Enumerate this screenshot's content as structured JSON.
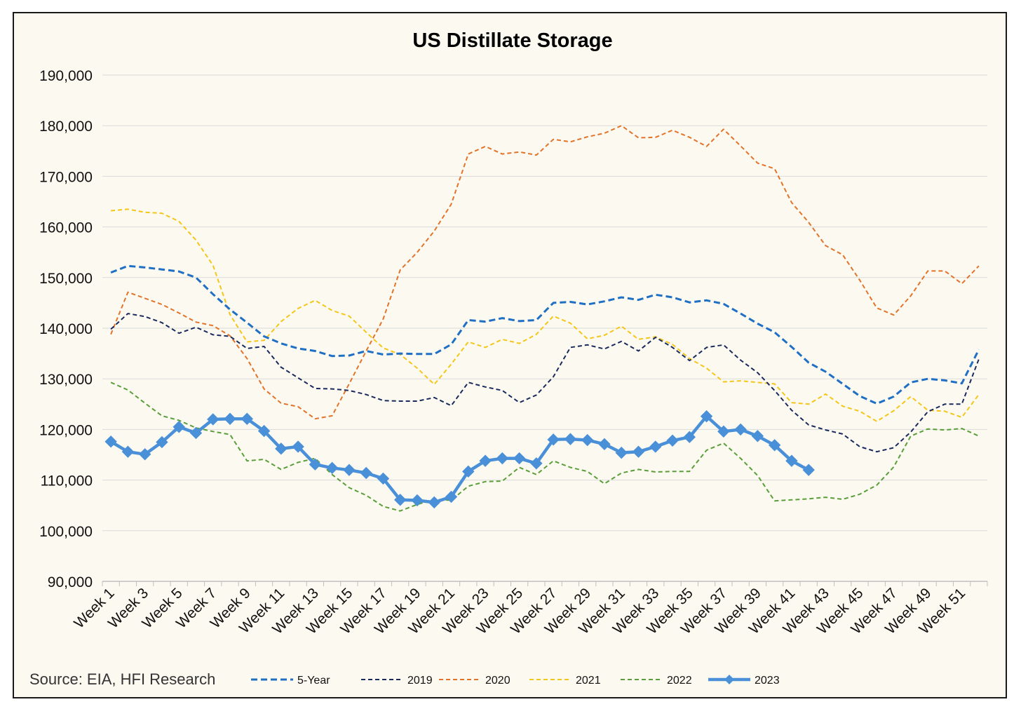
{
  "chart_data": {
    "type": "line",
    "title": "US Distillate Storage",
    "source": "Source: EIA, HFI Research",
    "xlabel": "",
    "ylabel": "",
    "ylim": [
      90000,
      190000
    ],
    "yticks": [
      90000,
      100000,
      110000,
      120000,
      130000,
      140000,
      150000,
      160000,
      170000,
      180000,
      190000
    ],
    "ytick_labels": [
      "90,000",
      "100,000",
      "110,000",
      "120,000",
      "130,000",
      "140,000",
      "150,000",
      "160,000",
      "170,000",
      "180,000",
      "190,000"
    ],
    "xtick_labels": [
      "Week 1",
      "Week 3",
      "Week 5",
      "Week 7",
      "Week 9",
      "Week 11",
      "Week 13",
      "Week 15",
      "Week 17",
      "Week 19",
      "Week 21",
      "Week 23",
      "Week 25",
      "Week 27",
      "Week 29",
      "Week 31",
      "Week 33",
      "Week 35",
      "Week 37",
      "Week 39",
      "Week 41",
      "Week 43",
      "Week 45",
      "Week 47",
      "Week 49",
      "Week 51"
    ],
    "grid": true,
    "legend_position": "bottom",
    "series": [
      {
        "name": "5-Year",
        "color": "#1f6fc5",
        "style": "dashed",
        "width": 3,
        "values": [
          151000,
          152300,
          152000,
          151600,
          151200,
          150000,
          146700,
          143700,
          141100,
          138400,
          137000,
          136000,
          135500,
          134500,
          134600,
          135500,
          134800,
          135000,
          134900,
          134900,
          136800,
          141600,
          141300,
          142000,
          141400,
          141600,
          145000,
          145200,
          144700,
          145300,
          146100,
          145600,
          146600,
          146100,
          145100,
          145500,
          144800,
          142900,
          140900,
          139200,
          136300,
          133200,
          131400,
          129000,
          126600,
          125100,
          126500,
          129300,
          130000,
          129700,
          129100,
          135800
        ]
      },
      {
        "name": "2019",
        "color": "#1a2a5e",
        "style": "dashed",
        "width": 2,
        "values": [
          139800,
          142900,
          142300,
          141100,
          139000,
          140200,
          138700,
          138400,
          136000,
          136400,
          132300,
          130200,
          128100,
          128000,
          127700,
          126900,
          125700,
          125600,
          125600,
          126300,
          124700,
          129300,
          128400,
          127700,
          125300,
          126800,
          130400,
          136200,
          136700,
          135900,
          137400,
          135500,
          138200,
          136200,
          133600,
          136200,
          136700,
          133700,
          131200,
          127700,
          123800,
          120900,
          119900,
          119100,
          116600,
          115600,
          116400,
          119500,
          123500,
          125000,
          125000,
          133900
        ]
      },
      {
        "name": "2020",
        "color": "#e2732a",
        "style": "dashed",
        "width": 2,
        "values": [
          138800,
          147100,
          145900,
          144700,
          143000,
          141200,
          140500,
          138500,
          134000,
          128000,
          125200,
          124500,
          122100,
          122700,
          129000,
          135500,
          141800,
          151500,
          155000,
          159200,
          164500,
          174400,
          175900,
          174400,
          174800,
          174200,
          177300,
          176800,
          177800,
          178500,
          180000,
          177600,
          177700,
          179100,
          177700,
          175900,
          179300,
          176000,
          172600,
          171500,
          164800,
          160900,
          156300,
          154500,
          149500,
          144000,
          142600,
          146400,
          151300,
          151300,
          148800,
          152300
        ]
      },
      {
        "name": "2021",
        "color": "#f5c518",
        "style": "dashed",
        "width": 2,
        "values": [
          163200,
          163500,
          162900,
          162700,
          161100,
          157400,
          152400,
          142700,
          137300,
          137600,
          141300,
          143900,
          145500,
          143500,
          142400,
          139200,
          136100,
          134800,
          132100,
          128900,
          132900,
          137300,
          136200,
          137800,
          137000,
          138800,
          142400,
          141000,
          137900,
          138600,
          140400,
          137800,
          138300,
          136800,
          134000,
          132100,
          129400,
          129600,
          129300,
          129000,
          125300,
          125000,
          127000,
          124600,
          123600,
          121600,
          123700,
          126500,
          123800,
          123600,
          122400,
          126900
        ]
      },
      {
        "name": "2022",
        "color": "#5a9e3a",
        "style": "dashed",
        "width": 2,
        "values": [
          129300,
          127800,
          125200,
          122700,
          121800,
          120300,
          119600,
          119000,
          113800,
          114100,
          112100,
          113500,
          114300,
          111100,
          108500,
          107000,
          104800,
          103900,
          105200,
          106200,
          106000,
          108800,
          109700,
          109800,
          112500,
          111100,
          113800,
          112500,
          111700,
          109300,
          111400,
          112100,
          111600,
          111700,
          111700,
          115900,
          117300,
          114300,
          110900,
          105900,
          106100,
          106300,
          106600,
          106200,
          107200,
          109000,
          112600,
          118700,
          120100,
          119900,
          120200,
          118700
        ]
      },
      {
        "name": "2023",
        "color": "#4a90d9",
        "style": "solid-marker",
        "width": 4.5,
        "values": [
          117600,
          115600,
          115100,
          117500,
          120500,
          119300,
          122000,
          122100,
          122100,
          119700,
          116200,
          116600,
          113100,
          112400,
          112000,
          111400,
          110300,
          106100,
          106000,
          105600,
          106700,
          111700,
          113800,
          114300,
          114300,
          113300,
          118000,
          118100,
          117900,
          117100,
          115400,
          115600,
          116600,
          117800,
          118500,
          122600,
          119600,
          120000,
          118700,
          116900,
          113800,
          112000
        ]
      }
    ]
  }
}
